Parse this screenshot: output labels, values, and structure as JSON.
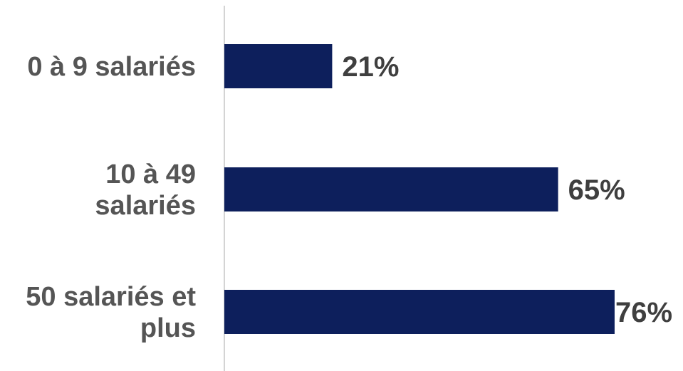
{
  "chart_data": {
    "type": "bar",
    "orientation": "horizontal",
    "categories": [
      "0 à 9 salariés",
      "10 à 49 salariés",
      "50 salariés et plus"
    ],
    "category_lines": [
      [
        "0 à 9 salariés"
      ],
      [
        "10 à 49",
        "salariés"
      ],
      [
        "50 salariés et",
        "plus"
      ]
    ],
    "values": [
      21,
      65,
      76
    ],
    "value_labels": [
      "21%",
      "65%",
      "76%"
    ],
    "xlim": [
      0,
      100
    ],
    "grid": false,
    "legend": "none",
    "colors": {
      "bar": "#0d1f5c",
      "axis": "#d4d4d4",
      "category_text": "#555555",
      "value_text": "#3f3f3f"
    }
  }
}
